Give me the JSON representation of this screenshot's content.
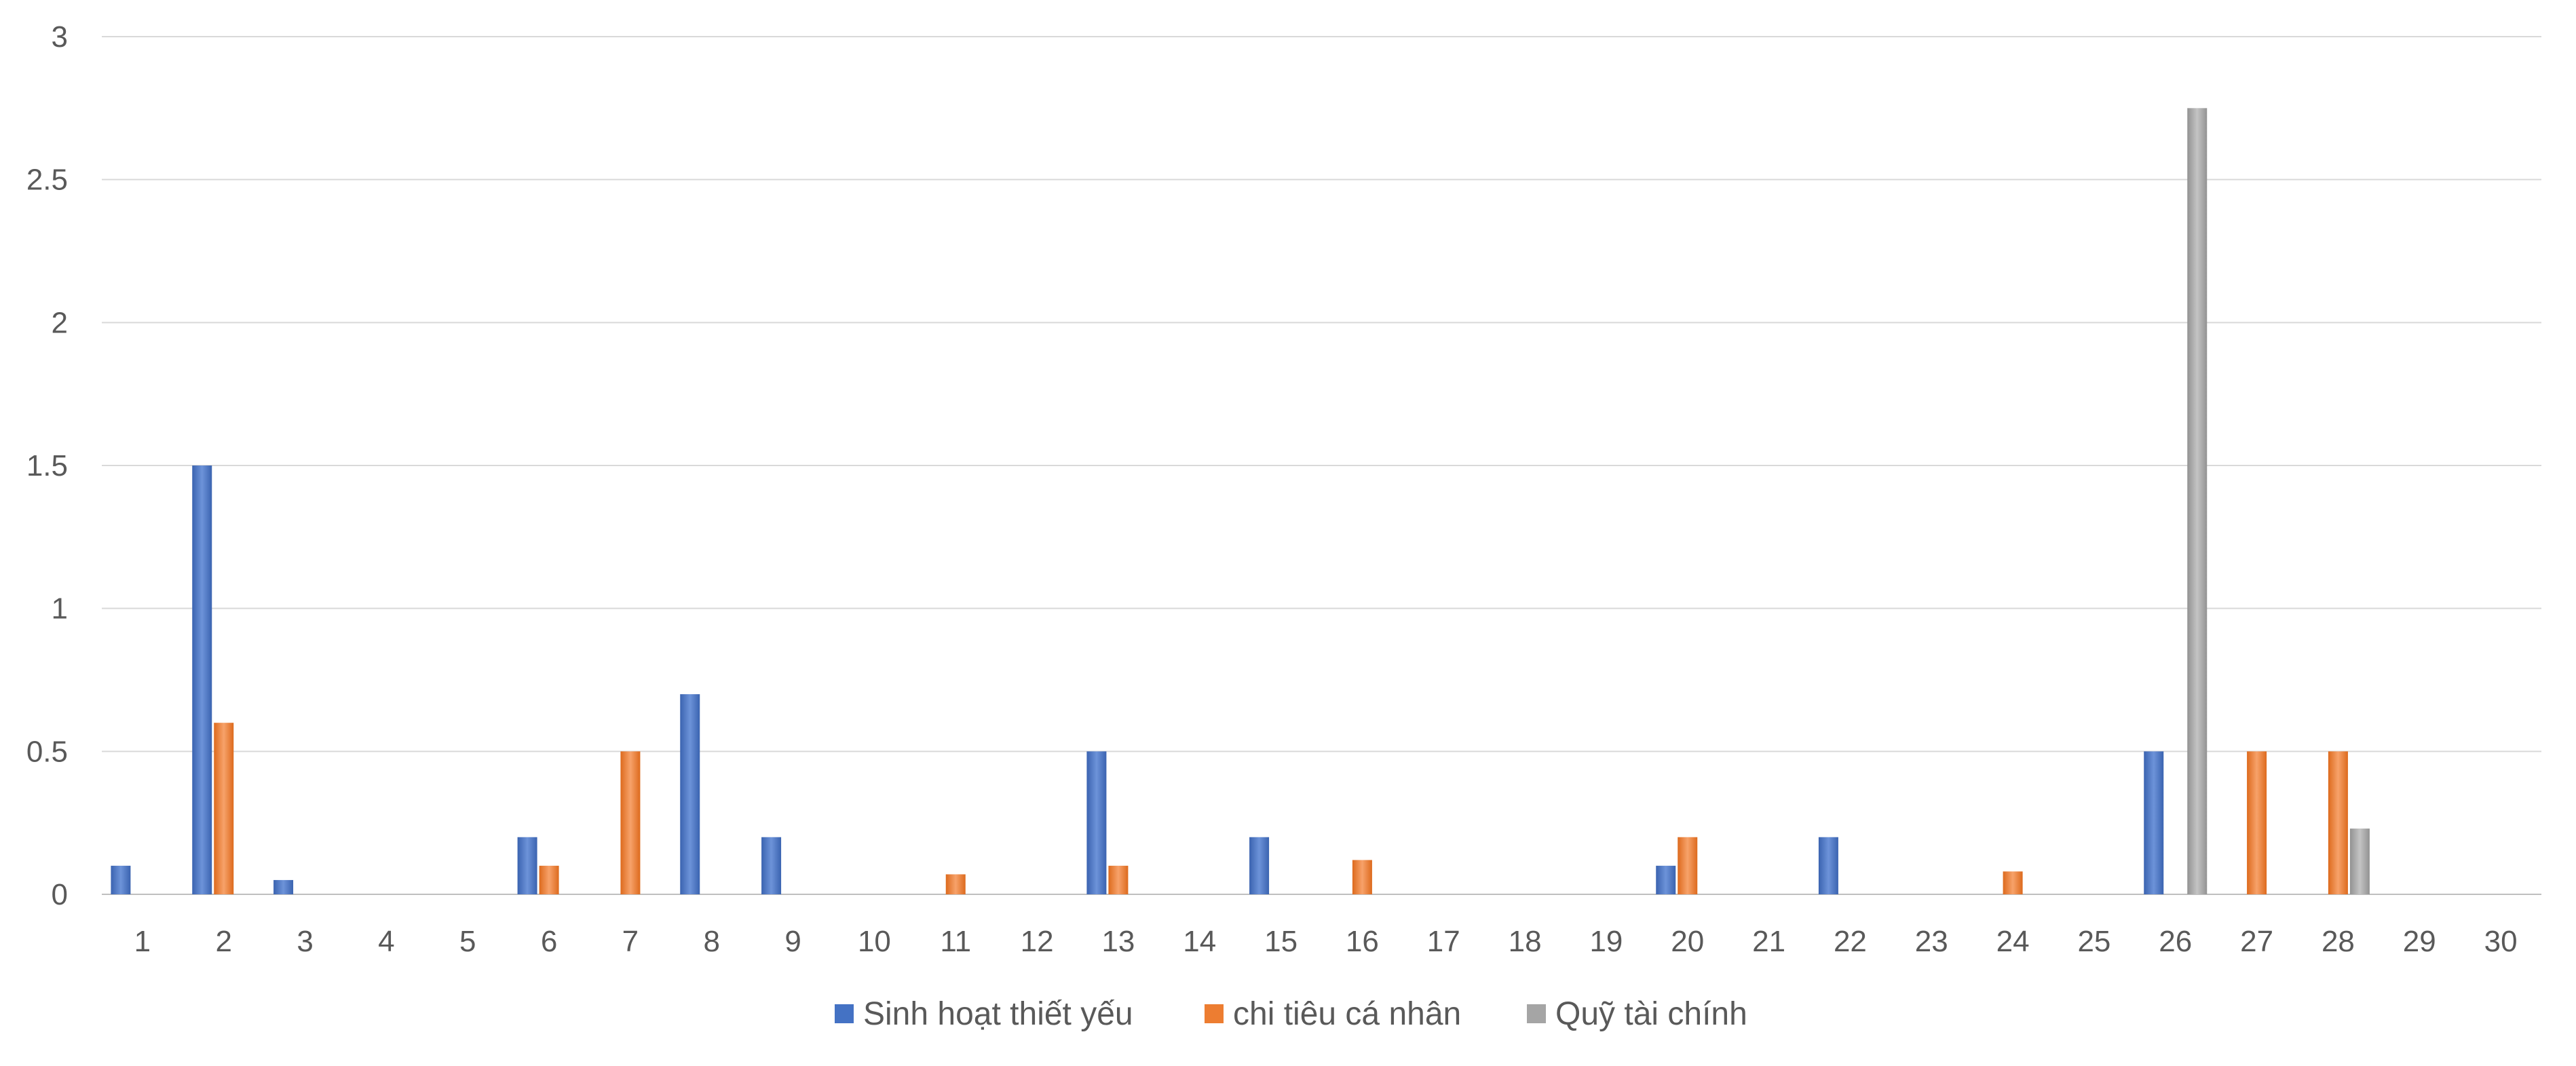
{
  "chart_data": {
    "type": "bar",
    "title": "",
    "xlabel": "",
    "ylabel": "",
    "categories": [
      "1",
      "2",
      "3",
      "4",
      "5",
      "6",
      "7",
      "8",
      "9",
      "10",
      "11",
      "12",
      "13",
      "14",
      "15",
      "16",
      "17",
      "18",
      "19",
      "20",
      "21",
      "22",
      "23",
      "24",
      "25",
      "26",
      "27",
      "28",
      "29",
      "30"
    ],
    "y_ticks": [
      "0",
      "0.5",
      "1",
      "1.5",
      "2",
      "2.5",
      "3"
    ],
    "ylim": [
      0,
      3
    ],
    "grid": true,
    "legend_position": "bottom",
    "series": [
      {
        "name": "Sinh hoạt thiết yếu",
        "color": "#4472c4",
        "values": [
          0.1,
          1.5,
          0.05,
          0,
          0,
          0.2,
          0,
          0.7,
          0.2,
          0,
          0,
          0,
          0.5,
          0,
          0.2,
          0,
          0,
          0,
          0,
          0.1,
          0,
          0.2,
          0,
          0,
          0,
          0.5,
          0,
          0,
          0,
          0
        ]
      },
      {
        "name": "chi tiêu cá nhân",
        "color": "#ed7d31",
        "values": [
          0,
          0.6,
          0,
          0,
          0,
          0.1,
          0.5,
          0,
          0,
          0,
          0.07,
          0,
          0.1,
          0,
          0,
          0.12,
          0,
          0,
          0,
          0.2,
          0,
          0,
          0,
          0.08,
          0,
          0,
          0.5,
          0.5,
          0,
          0
        ]
      },
      {
        "name": "Quỹ tài chính",
        "color": "#a5a5a5",
        "values": [
          0,
          0,
          0,
          0,
          0,
          0,
          0,
          0,
          0,
          0,
          0,
          0,
          0,
          0,
          0,
          0,
          0,
          0,
          0,
          0,
          0,
          0,
          0,
          0,
          0,
          2.75,
          0,
          0.23,
          0,
          0
        ]
      }
    ]
  }
}
